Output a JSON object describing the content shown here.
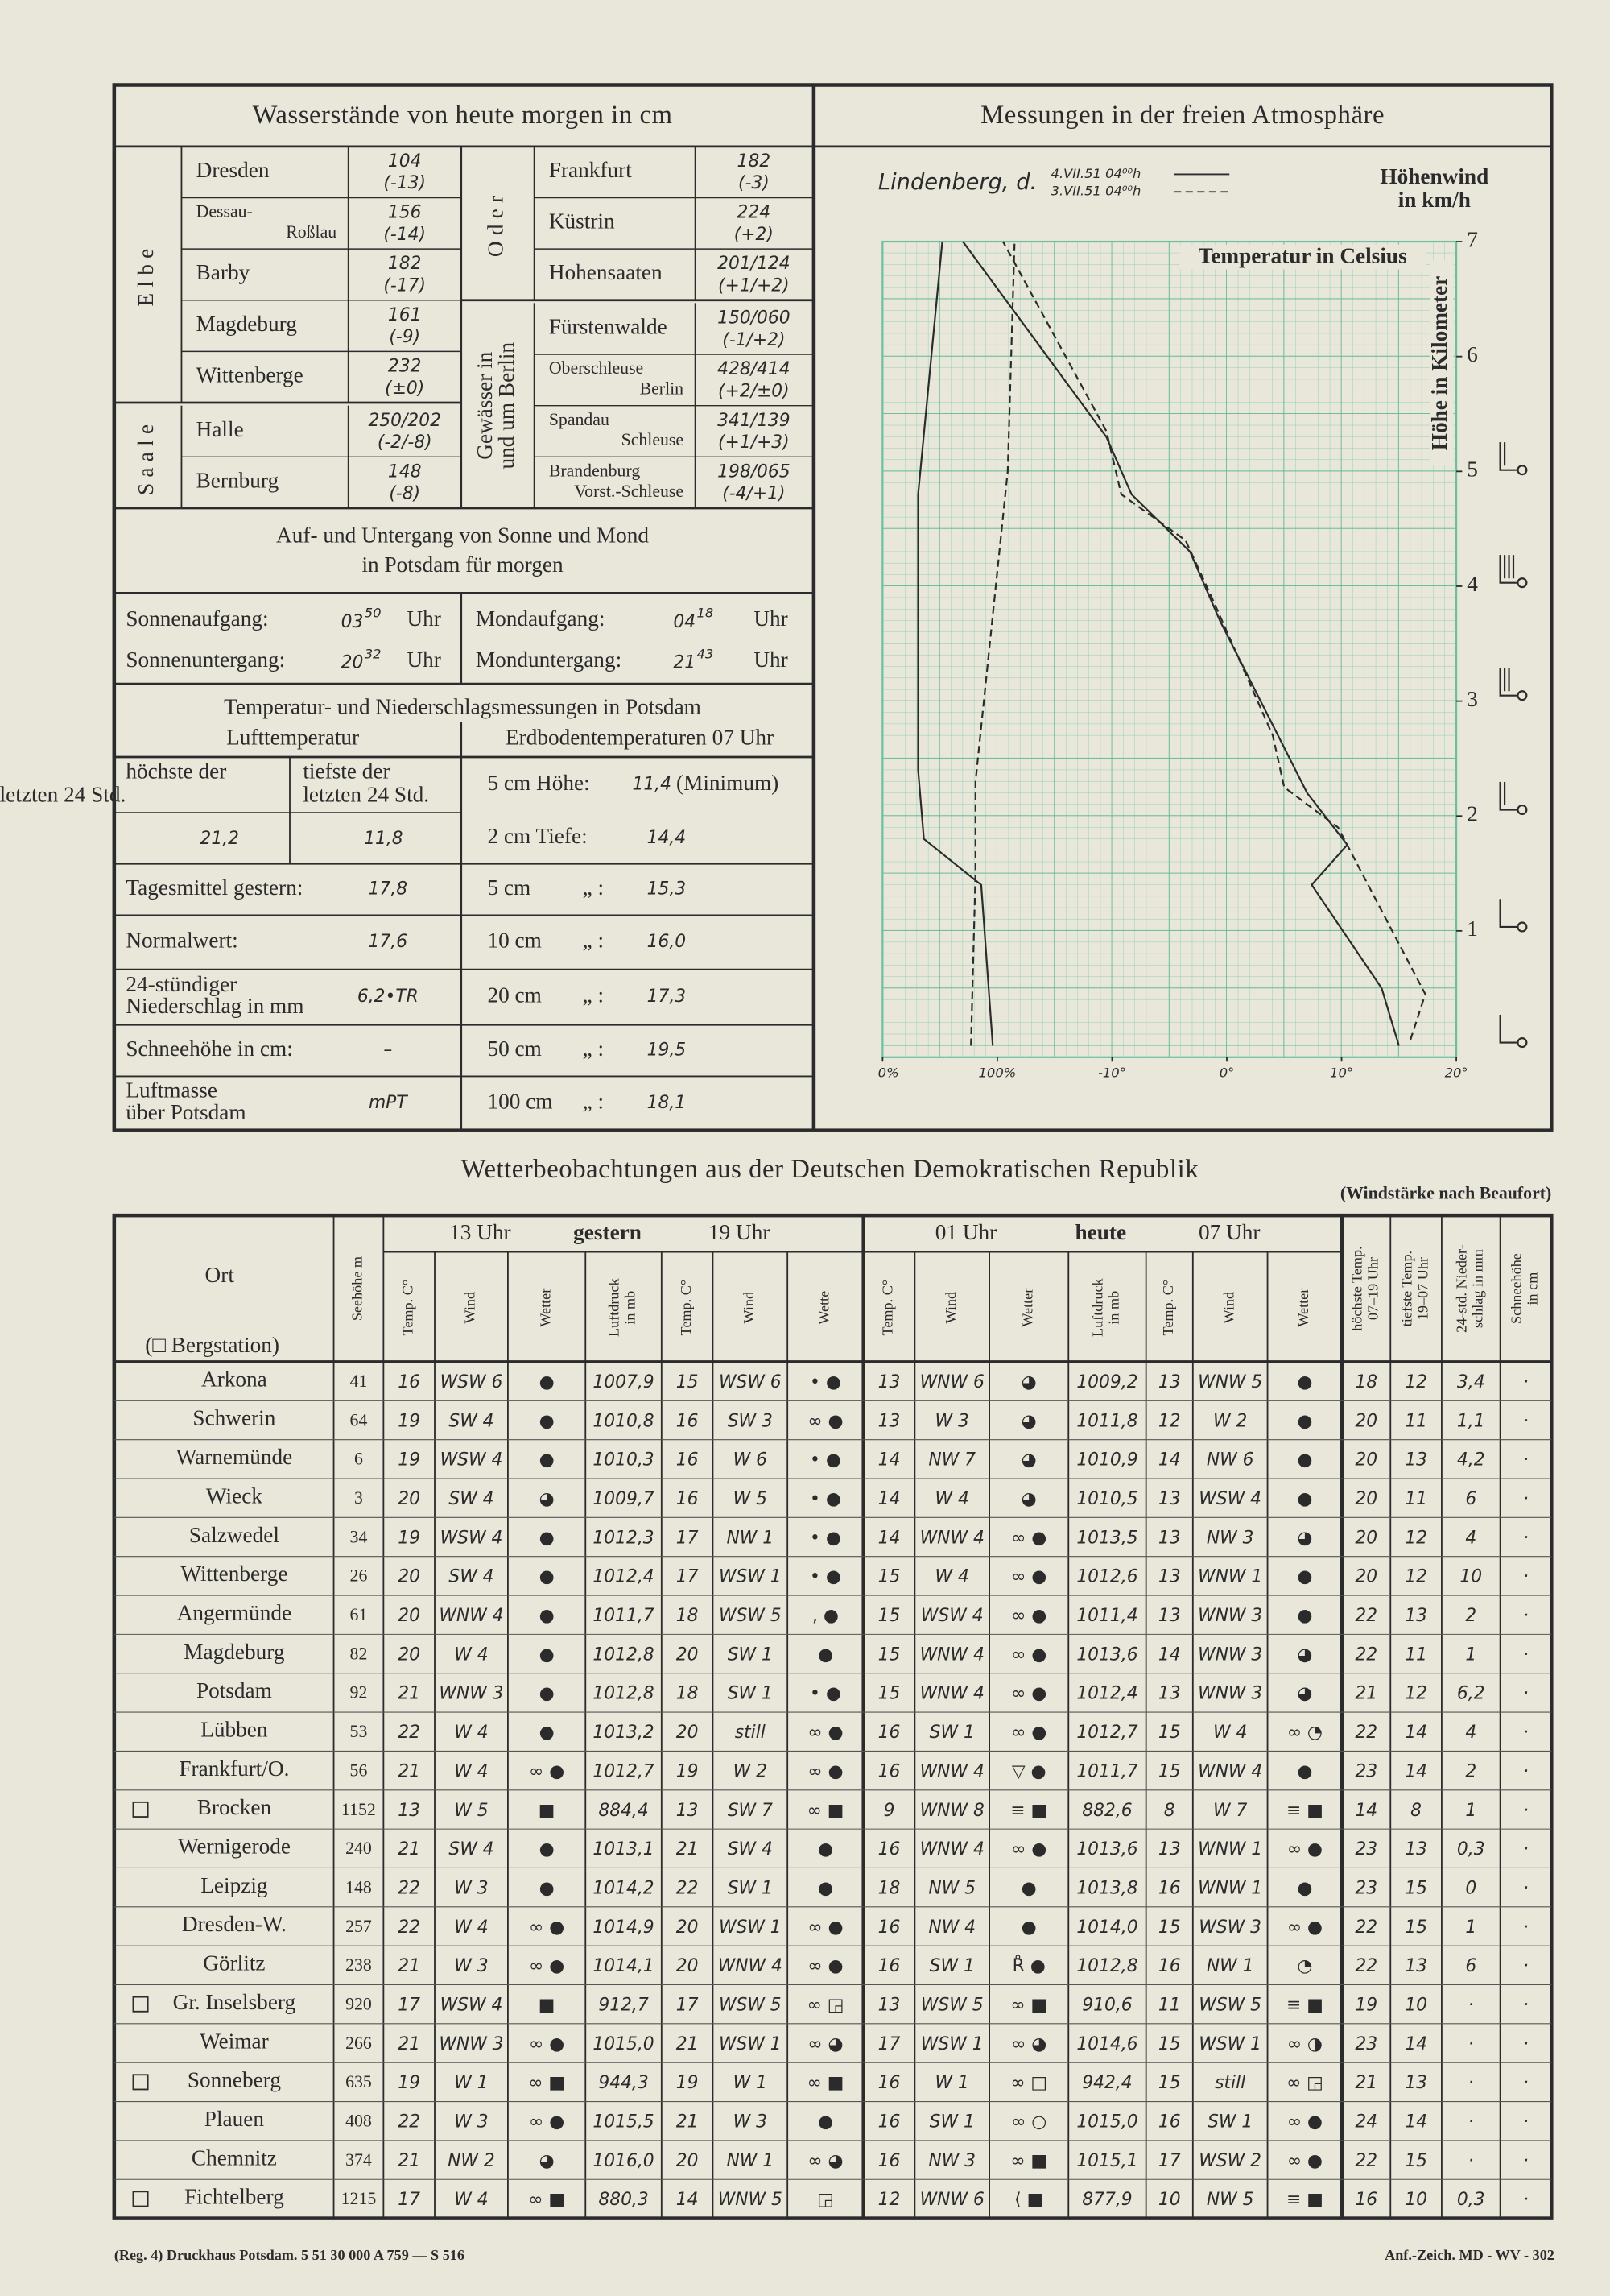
{
  "water_levels": {
    "title": "Wasserstände von heute morgen in cm",
    "groups": [
      {
        "label": [
          "Elbe"
        ],
        "stations": [
          {
            "name": [
              "Dresden"
            ],
            "value": "104",
            "change": "(-13)"
          },
          {
            "name": [
              "Dessau-",
              "Roßlau"
            ],
            "value": "156",
            "change": "(-14)"
          },
          {
            "name": [
              "Barby"
            ],
            "value": "182",
            "change": "(-17)"
          },
          {
            "name": [
              "Magdeburg"
            ],
            "value": "161",
            "change": "(-9)"
          },
          {
            "name": [
              "Wittenberge"
            ],
            "value": "232",
            "change": "(±0)"
          }
        ]
      },
      {
        "label": [
          "Saale"
        ],
        "stations": [
          {
            "name": [
              "Halle"
            ],
            "value": "250/202",
            "change": "(-2/-8)"
          },
          {
            "name": [
              "Bernburg"
            ],
            "value": "148",
            "change": "(-8)"
          }
        ]
      },
      {
        "label": [
          "Oder"
        ],
        "stations": [
          {
            "name": [
              "Frankfurt"
            ],
            "value": "182",
            "change": "(-3)"
          },
          {
            "name": [
              "Küstrin"
            ],
            "value": "224",
            "change": "(+2)"
          },
          {
            "name": [
              "Hohensaaten"
            ],
            "value": "201/124",
            "change": "(+1/+2)"
          }
        ]
      },
      {
        "label": [
          "Gewässer in",
          "und um Berlin"
        ],
        "stations": [
          {
            "name": [
              "Fürstenwalde"
            ],
            "value": "150/060",
            "change": "(-1/+2)"
          },
          {
            "name": [
              "Oberschleuse",
              "Berlin"
            ],
            "value": "428/414",
            "change": "(+2/±0)"
          },
          {
            "name": [
              "Spandau",
              "Schleuse"
            ],
            "value": "341/139",
            "change": "(+1/+3)"
          },
          {
            "name": [
              "Brandenburg",
              "Vorst.-Schleuse"
            ],
            "value": "198/065",
            "change": "(-4/+1)"
          }
        ]
      }
    ]
  },
  "sun_moon": {
    "title": [
      "Auf- und Untergang von Sonne und Mond",
      "in Potsdam für morgen"
    ],
    "rows": [
      {
        "label": "Sonnenaufgang:",
        "hour": "03",
        "minute": "50",
        "unit": "Uhr"
      },
      {
        "label": "Mondaufgang:",
        "hour": "04",
        "minute": "18",
        "unit": "Uhr"
      },
      {
        "label": "Sonnenuntergang:",
        "hour": "20",
        "minute": "32",
        "unit": "Uhr"
      },
      {
        "label": "Monduntergang:",
        "hour": "21",
        "minute": "43",
        "unit": "Uhr"
      }
    ]
  },
  "potsdam": {
    "title": "Temperatur- und Niederschlagsmessungen in Potsdam",
    "air_header": "Lufttemperatur",
    "soil_header": "Erdbodentemperaturen 07 Uhr",
    "max_label": [
      "höchste der",
      "letzten 24 Std."
    ],
    "max_value": "21,2",
    "min_label": [
      "tiefste der",
      "letzten 24 Std."
    ],
    "min_value": "11,8",
    "rows": [
      {
        "label": [
          "Tagesmittel gestern:"
        ],
        "value": "17,8"
      },
      {
        "label": [
          "Normalwert:"
        ],
        "value": "17,6"
      },
      {
        "label": [
          "24-stündiger",
          "Niederschlag in mm"
        ],
        "value": "6,2•TR"
      },
      {
        "label": [
          "Schneehöhe in cm:"
        ],
        "value": "–"
      },
      {
        "label": [
          "Luftmasse",
          "über Potsdam"
        ],
        "value": "mPT"
      }
    ],
    "soil": [
      {
        "depth": "5 cm Höhe:",
        "value": "11,4",
        "note": "(Minimum)"
      },
      {
        "depth": "2 cm Tiefe:",
        "value": "14,4"
      },
      {
        "depth": "5 cm",
        "ditto": "„ :",
        "value": "15,3"
      },
      {
        "depth": "10 cm",
        "ditto": "„ :",
        "value": "16,0"
      },
      {
        "depth": "20 cm",
        "ditto": "„ :",
        "value": "17,3"
      },
      {
        "depth": "50 cm",
        "ditto": "„ :",
        "value": "19,5"
      },
      {
        "depth": "100 cm",
        "ditto": "„ :",
        "value": "18,1"
      }
    ]
  },
  "atmosphere": {
    "title": "Messungen in der freien Atmosphäre",
    "station": "Lindenberg, d.",
    "wind_label": [
      "Höhenwind",
      "in km/h"
    ],
    "temp_label": "Temperatur in Celsius",
    "height_label": "Höhe in Kilometer",
    "chart": {
      "type": "line",
      "ylim": [
        -0.1,
        7
      ],
      "yticks": [
        1,
        2,
        3,
        4,
        5,
        6,
        7
      ],
      "temp_xlim": [
        -30,
        20
      ],
      "humidity_xlim": [
        0,
        500
      ],
      "temp_ticks": [
        {
          "value": -10,
          "label": "-10°"
        },
        {
          "value": 0,
          "label": "0°"
        },
        {
          "value": 10,
          "label": "10°"
        },
        {
          "value": 20,
          "label": "20°"
        }
      ],
      "humidity_ticks": [
        {
          "value": 0,
          "label": "0%"
        },
        {
          "value": 100,
          "label": "100%"
        }
      ],
      "grid_color": "#6cbf9f",
      "series": [
        {
          "name": "4.VII.51 04⁰⁰h",
          "style": "solid",
          "color": "#2b2b2b",
          "temperature": {
            "x": [
              15,
              13.5,
              7.4,
              10.5,
              7,
              -0.6,
              -3.2,
              -8.3,
              -10.5,
              -23
            ],
            "y": [
              0,
              0.5,
              1.4,
              1.75,
              2.2,
              3.7,
              4.3,
              4.8,
              5.3,
              7
            ]
          },
          "humidity": {
            "x": [
              96,
              86,
              36,
              31,
              31,
              52
            ],
            "y": [
              0,
              1.4,
              1.8,
              2.4,
              4.8,
              7
            ]
          }
        },
        {
          "name": "3.VII.51 04⁰⁰h",
          "style": "dashed",
          "color": "#2b2b2b",
          "temperature": {
            "x": [
              16,
              17.3,
              9.7,
              5,
              4,
              -1.3,
              -3.6,
              -9.2,
              -10.5,
              -19.5
            ],
            "y": [
              0.05,
              0.45,
              1.9,
              2.25,
              2.7,
              3.9,
              4.4,
              4.8,
              5.35,
              7
            ]
          },
          "humidity": {
            "x": [
              77,
              81,
              81,
              109,
              115
            ],
            "y": [
              0,
              1.5,
              2.3,
              5,
              7
            ]
          }
        }
      ]
    }
  },
  "observations": {
    "title": "Wetterbeobachtungen aus der Deutschen Demokratischen Republik",
    "note": "(Windstärke nach Beaufort)",
    "place_header": "Ort",
    "mountain_header": "(□ Bergstation)",
    "groups": [
      "13 Uhr",
      "gestern",
      "19 Uhr",
      "01 Uhr",
      "heute",
      "07 Uhr"
    ],
    "columns": [
      [
        "Seehöhe m"
      ],
      [
        "Temp. C°"
      ],
      [
        "Wind"
      ],
      [
        "Wetter"
      ],
      [
        "Luftdruck",
        "in mb"
      ],
      [
        "Temp. C°"
      ],
      [
        "Wind"
      ],
      [
        "Wette"
      ],
      [
        "Temp. C°"
      ],
      [
        "Wind"
      ],
      [
        "Wetter"
      ],
      [
        "Luftdruck",
        "in mb"
      ],
      [
        "Temp. C°"
      ],
      [
        "Wind"
      ],
      [
        "Wetter"
      ],
      [
        "höchste Temp.",
        "07–19 Uhr"
      ],
      [
        "tiefste Temp.",
        "19–07 Uhr"
      ],
      [
        "24-std. Nieder-",
        "schlag in mm"
      ],
      [
        "Schneehöhe",
        "in cm"
      ]
    ],
    "rows": [
      {
        "name": "Arkona",
        "cells": [
          "41",
          "16",
          "WSW 6",
          "●",
          "1007,9",
          "15",
          "WSW 6",
          "• ●",
          "13",
          "WNW 6",
          "◕",
          "1009,2",
          "13",
          "WNW 5",
          "●",
          "18",
          "12",
          "3,4",
          "·"
        ]
      },
      {
        "name": "Schwerin",
        "cells": [
          "64",
          "19",
          "SW 4",
          "●",
          "1010,8",
          "16",
          "SW 3",
          "∞ ●",
          "13",
          "W 3",
          "◕",
          "1011,8",
          "12",
          "W 2",
          "●",
          "20",
          "11",
          "1,1",
          "·"
        ]
      },
      {
        "name": "Warnemünde",
        "cells": [
          "6",
          "19",
          "WSW 4",
          "●",
          "1010,3",
          "16",
          "W 6",
          "• ●",
          "14",
          "NW 7",
          "◕",
          "1010,9",
          "14",
          "NW 6",
          "●",
          "20",
          "13",
          "4,2",
          "·"
        ]
      },
      {
        "name": "Wieck",
        "cells": [
          "3",
          "20",
          "SW 4",
          "◕",
          "1009,7",
          "16",
          "W 5",
          "• ●",
          "14",
          "W 4",
          "◕",
          "1010,5",
          "13",
          "WSW 4",
          "●",
          "20",
          "11",
          "6",
          "·"
        ]
      },
      {
        "name": "Salzwedel",
        "cells": [
          "34",
          "19",
          "WSW 4",
          "●",
          "1012,3",
          "17",
          "NW 1",
          "• ●",
          "14",
          "WNW 4",
          "∞ ●",
          "1013,5",
          "13",
          "NW 3",
          "◕",
          "20",
          "12",
          "4",
          "·"
        ]
      },
      {
        "name": "Wittenberge",
        "cells": [
          "26",
          "20",
          "SW 4",
          "●",
          "1012,4",
          "17",
          "WSW 1",
          "• ●",
          "15",
          "W 4",
          "∞ ●",
          "1012,6",
          "13",
          "WNW 1",
          "●",
          "20",
          "12",
          "10",
          "·"
        ]
      },
      {
        "name": "Angermünde",
        "cells": [
          "61",
          "20",
          "WNW 4",
          "●",
          "1011,7",
          "18",
          "WSW 5",
          ", ●",
          "15",
          "WSW 4",
          "∞ ●",
          "1011,4",
          "13",
          "WNW 3",
          "●",
          "22",
          "13",
          "2",
          "·"
        ]
      },
      {
        "name": "Magdeburg",
        "cells": [
          "82",
          "20",
          "W 4",
          "●",
          "1012,8",
          "20",
          "SW 1",
          "●",
          "15",
          "WNW 4",
          "∞ ●",
          "1013,6",
          "14",
          "WNW 3",
          "◕",
          "22",
          "11",
          "1",
          "·"
        ]
      },
      {
        "name": "Potsdam",
        "cells": [
          "92",
          "21",
          "WNW 3",
          "●",
          "1012,8",
          "18",
          "SW 1",
          "• ●",
          "15",
          "WNW 4",
          "∞ ●",
          "1012,4",
          "13",
          "WNW 3",
          "◕",
          "21",
          "12",
          "6,2",
          "·"
        ]
      },
      {
        "name": "Lübben",
        "cells": [
          "53",
          "22",
          "W 4",
          "●",
          "1013,2",
          "20",
          "still",
          "∞ ●",
          "16",
          "SW 1",
          "∞ ●",
          "1012,7",
          "15",
          "W 4",
          "∞ ◔",
          "22",
          "14",
          "4",
          "·"
        ]
      },
      {
        "name": "Frankfurt/O.",
        "cells": [
          "56",
          "21",
          "W 4",
          "∞ ●",
          "1012,7",
          "19",
          "W 2",
          "∞ ●",
          "16",
          "WNW 4",
          "▽ ●",
          "1011,7",
          "15",
          "WNW 4",
          "●",
          "23",
          "14",
          "2",
          "·"
        ]
      },
      {
        "name": "Brocken",
        "mountain": true,
        "cells": [
          "1152",
          "13",
          "W 5",
          "■",
          "884,4",
          "13",
          "SW 7",
          "∞ ■",
          "9",
          "WNW 8",
          "≡ ■",
          "882,6",
          "8",
          "W 7",
          "≡ ■",
          "14",
          "8",
          "1",
          "·"
        ]
      },
      {
        "name": "Wernigerode",
        "cells": [
          "240",
          "21",
          "SW 4",
          "●",
          "1013,1",
          "21",
          "SW 4",
          "●",
          "16",
          "WNW 4",
          "∞ ●",
          "1013,6",
          "13",
          "WNW 1",
          "∞ ●",
          "23",
          "13",
          "0,3",
          "·"
        ]
      },
      {
        "name": "Leipzig",
        "cells": [
          "148",
          "22",
          "W 3",
          "●",
          "1014,2",
          "22",
          "SW 1",
          "●",
          "18",
          "NW 5",
          "●",
          "1013,8",
          "16",
          "WNW 1",
          "●",
          "23",
          "15",
          "0",
          "·"
        ]
      },
      {
        "name": "Dresden-W.",
        "cells": [
          "257",
          "22",
          "W 4",
          "∞ ●",
          "1014,9",
          "20",
          "WSW 1",
          "∞ ●",
          "16",
          "NW 4",
          "●",
          "1014,0",
          "15",
          "WSW 3",
          "∞ ●",
          "22",
          "15",
          "1",
          "·"
        ]
      },
      {
        "name": "Görlitz",
        "cells": [
          "238",
          "21",
          "W 3",
          "∞ ●",
          "1014,1",
          "20",
          "WNW 4",
          "∞ ●",
          "16",
          "SW 1",
          "R̊ ●",
          "1012,8",
          "16",
          "NW 1",
          "◔",
          "22",
          "13",
          "6",
          "·"
        ]
      },
      {
        "name": "Gr. Inselsberg",
        "mountain": true,
        "cells": [
          "920",
          "17",
          "WSW 4",
          "■",
          "912,7",
          "17",
          "WSW 5",
          "∞ ◲",
          "13",
          "WSW 5",
          "∞ ■",
          "910,6",
          "11",
          "WSW 5",
          "≡ ■",
          "19",
          "10",
          "·",
          "·"
        ]
      },
      {
        "name": "Weimar",
        "cells": [
          "266",
          "21",
          "WNW 3",
          "∞ ●",
          "1015,0",
          "21",
          "WSW 1",
          "∞ ◕",
          "17",
          "WSW 1",
          "∞ ◕",
          "1014,6",
          "15",
          "WSW 1",
          "∞ ◑",
          "23",
          "14",
          "·",
          "·"
        ]
      },
      {
        "name": "Sonneberg",
        "mountain": true,
        "cells": [
          "635",
          "19",
          "W 1",
          "∞ ■",
          "944,3",
          "19",
          "W 1",
          "∞ ■",
          "16",
          "W 1",
          "∞ □",
          "942,4",
          "15",
          "still",
          "∞ ◲",
          "21",
          "13",
          "·",
          "·"
        ]
      },
      {
        "name": "Plauen",
        "cells": [
          "408",
          "22",
          "W 3",
          "∞ ●",
          "1015,5",
          "21",
          "W 3",
          "●",
          "16",
          "SW 1",
          "∞ ○",
          "1015,0",
          "16",
          "SW 1",
          "∞ ●",
          "24",
          "14",
          "·",
          "·"
        ]
      },
      {
        "name": "Chemnitz",
        "cells": [
          "374",
          "21",
          "NW 2",
          "◕",
          "1016,0",
          "20",
          "NW 1",
          "∞ ◕",
          "16",
          "NW 3",
          "∞ ■",
          "1015,1",
          "17",
          "WSW 2",
          "∞ ●",
          "22",
          "15",
          "·",
          "·"
        ]
      },
      {
        "name": "Fichtelberg",
        "mountain": true,
        "cells": [
          "1215",
          "17",
          "W 4",
          "∞ ■",
          "880,3",
          "14",
          "WNW 5",
          "◲",
          "12",
          "WNW 6",
          "⟨ ■",
          "877,9",
          "10",
          "NW 5",
          "≡ ■",
          "16",
          "10",
          "0,3",
          "·"
        ]
      }
    ]
  },
  "footer": {
    "left": "(Reg. 4) Druckhaus Potsdam.   5 51 30 000  A 759 — S 516",
    "right": "Anf.-Zeich. MD - WV - 302"
  }
}
